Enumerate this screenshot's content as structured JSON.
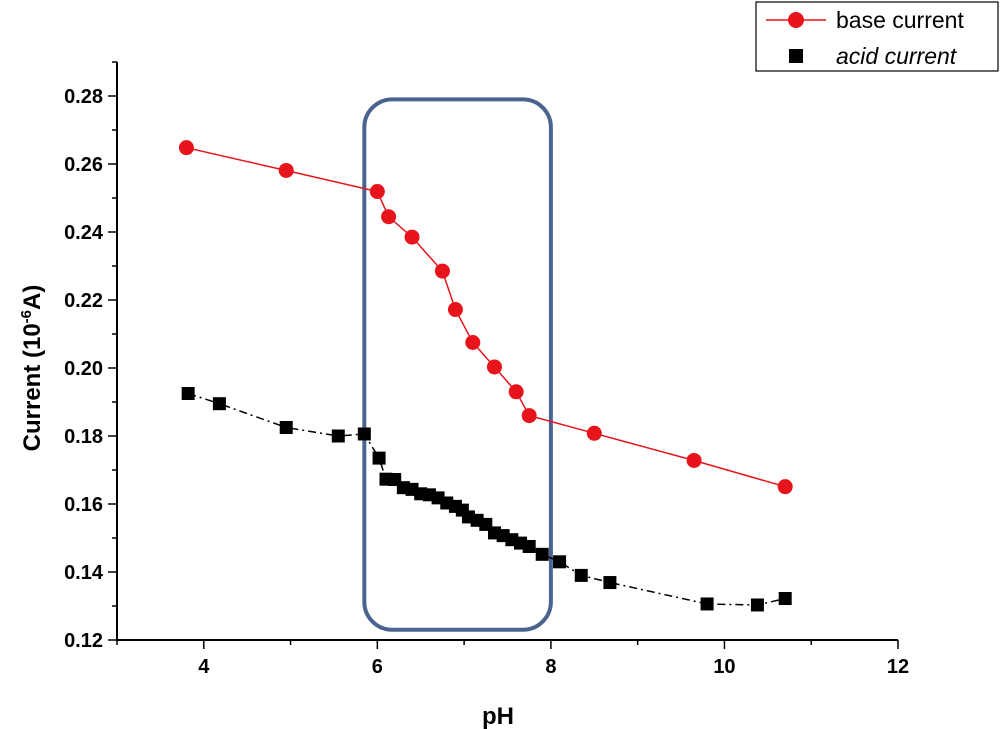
{
  "chart_data": {
    "type": "line",
    "title": "",
    "xlabel": "pH",
    "ylabel_main": "Current (10",
    "ylabel_sup": "-6",
    "ylabel_tail": "A)",
    "xlim": [
      3,
      12
    ],
    "ylim": [
      0.12,
      0.29
    ],
    "x_ticks": [
      4,
      6,
      8,
      10,
      12
    ],
    "x_tick_labels": [
      "4",
      "6",
      "8",
      "10",
      "12"
    ],
    "y_ticks": [
      0.12,
      0.14,
      0.16,
      0.18,
      0.2,
      0.22,
      0.24,
      0.26,
      0.28
    ],
    "y_tick_labels": [
      "0.12",
      "0.14",
      "0.16",
      "0.18",
      "0.20",
      "0.22",
      "0.24",
      "0.26",
      "0.28"
    ],
    "grid": false,
    "legend_position": "top-right",
    "highlight_region": {
      "x_range": [
        5.85,
        8.0
      ],
      "y_range": [
        0.123,
        0.279
      ],
      "color": "#4a6490"
    },
    "series": [
      {
        "name": "base current",
        "color": "#e8141b",
        "marker": "circle",
        "line": "solid",
        "x": [
          3.8,
          4.95,
          6.0,
          6.13,
          6.4,
          6.75,
          6.9,
          7.1,
          7.35,
          7.6,
          7.75,
          8.5,
          9.65,
          10.7
        ],
        "y": [
          0.2648,
          0.2581,
          0.2519,
          0.2445,
          0.2385,
          0.2285,
          0.2172,
          0.2075,
          0.2003,
          0.193,
          0.186,
          0.1808,
          0.1728,
          0.1651
        ]
      },
      {
        "name": "acid current",
        "color": "#000000",
        "marker": "square",
        "line": "dash-dot",
        "x": [
          3.82,
          4.18,
          4.95,
          5.55,
          5.85,
          6.02,
          6.1,
          6.2,
          6.3,
          6.4,
          6.5,
          6.6,
          6.7,
          6.8,
          6.9,
          6.98,
          7.05,
          7.15,
          7.25,
          7.35,
          7.45,
          7.55,
          7.65,
          7.75,
          7.9,
          8.1,
          8.35,
          8.68,
          9.8,
          10.38,
          10.7
        ],
        "y": [
          0.1925,
          0.1895,
          0.1825,
          0.18,
          0.1806,
          0.1735,
          0.1673,
          0.1672,
          0.1648,
          0.1643,
          0.163,
          0.1627,
          0.1618,
          0.1603,
          0.1593,
          0.1582,
          0.1562,
          0.1552,
          0.154,
          0.1515,
          0.1507,
          0.1495,
          0.1485,
          0.1475,
          0.1452,
          0.143,
          0.139,
          0.1369,
          0.1306,
          0.1303,
          0.1322
        ]
      }
    ]
  }
}
